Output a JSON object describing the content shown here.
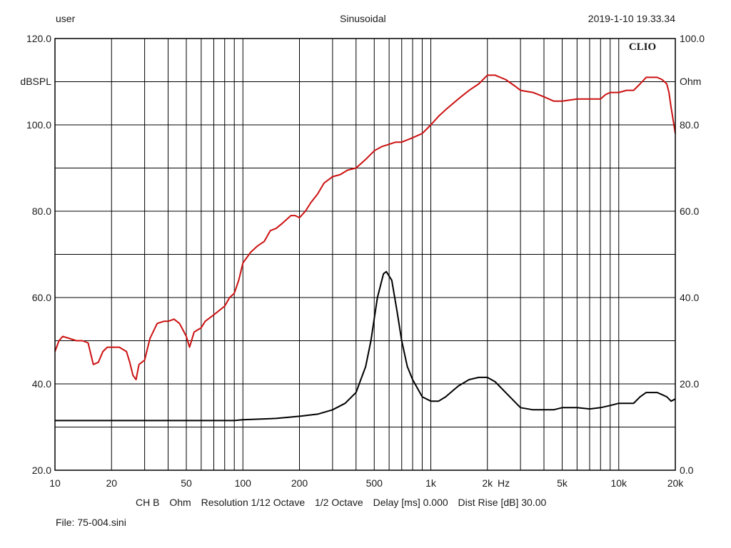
{
  "header": {
    "user": "user",
    "mode": "Sinusoidal",
    "timestamp": "2019-1-10 19.33.34"
  },
  "brand": "CLIO",
  "info_line": {
    "channel": "CH B",
    "units": "Ohm",
    "resolution": "Resolution 1/12 Octave",
    "smoothing": "1/2 Octave",
    "delay": "Delay [ms] 0.000",
    "dist_rise": "Dist Rise [dB] 30.00"
  },
  "file_label": "File: 75-004.sini",
  "chart_data": {
    "type": "line",
    "x_scale": "log",
    "xlim": [
      10,
      20000
    ],
    "x_tick_labels": [
      {
        "value": 10,
        "label": "10"
      },
      {
        "value": 20,
        "label": "20"
      },
      {
        "value": 50,
        "label": "50"
      },
      {
        "value": 100,
        "label": "100"
      },
      {
        "value": 200,
        "label": "200"
      },
      {
        "value": 500,
        "label": "500"
      },
      {
        "value": 1000,
        "label": "1k"
      },
      {
        "value": 2000,
        "label": "2k"
      },
      {
        "value": 5000,
        "label": "5k"
      },
      {
        "value": 10000,
        "label": "10k"
      },
      {
        "value": 20000,
        "label": "20k"
      }
    ],
    "x_unit_label": "Hz",
    "left_axis": {
      "label": "dBSPL",
      "ylim": [
        20,
        120
      ],
      "ticks": [
        "20.0",
        "40.0",
        "60.0",
        "80.0",
        "100.0",
        "120.0"
      ]
    },
    "right_axis": {
      "label": "Ohm",
      "ylim": [
        0,
        100
      ],
      "ticks": [
        "0.0",
        "20.0",
        "40.0",
        "60.0",
        "80.0",
        "100.0"
      ]
    },
    "grid": true,
    "series": [
      {
        "axis": "left",
        "color": "#cc1111",
        "points": [
          [
            10,
            47.5
          ],
          [
            10.5,
            50
          ],
          [
            11,
            51
          ],
          [
            12,
            50.5
          ],
          [
            13,
            50
          ],
          [
            14,
            50
          ],
          [
            15,
            49.5
          ],
          [
            16,
            44.5
          ],
          [
            17,
            45
          ],
          [
            18,
            47.5
          ],
          [
            19,
            48.5
          ],
          [
            20,
            48.5
          ],
          [
            22,
            48.5
          ],
          [
            24,
            47.5
          ],
          [
            25,
            45
          ],
          [
            26,
            42
          ],
          [
            27,
            41
          ],
          [
            28,
            44.5
          ],
          [
            30,
            45.5
          ],
          [
            32,
            50.5
          ],
          [
            35,
            54
          ],
          [
            38,
            54.5
          ],
          [
            40,
            54.5
          ],
          [
            43,
            55
          ],
          [
            46,
            54
          ],
          [
            50,
            51
          ],
          [
            52,
            48.5
          ],
          [
            55,
            52
          ],
          [
            60,
            53
          ],
          [
            63,
            54.5
          ],
          [
            70,
            56
          ],
          [
            80,
            58
          ],
          [
            85,
            60
          ],
          [
            90,
            61
          ],
          [
            95,
            64
          ],
          [
            100,
            68
          ],
          [
            110,
            70.5
          ],
          [
            120,
            72
          ],
          [
            130,
            73
          ],
          [
            140,
            75.5
          ],
          [
            150,
            76
          ],
          [
            160,
            77
          ],
          [
            170,
            78
          ],
          [
            180,
            79
          ],
          [
            190,
            79
          ],
          [
            200,
            78.5
          ],
          [
            215,
            80
          ],
          [
            230,
            82
          ],
          [
            250,
            84
          ],
          [
            270,
            86.5
          ],
          [
            300,
            88
          ],
          [
            330,
            88.5
          ],
          [
            360,
            89.5
          ],
          [
            400,
            90
          ],
          [
            450,
            92
          ],
          [
            500,
            94
          ],
          [
            550,
            95
          ],
          [
            600,
            95.5
          ],
          [
            650,
            96
          ],
          [
            700,
            96
          ],
          [
            800,
            97
          ],
          [
            900,
            98
          ],
          [
            1000,
            100
          ],
          [
            1100,
            102
          ],
          [
            1200,
            103.5
          ],
          [
            1400,
            106
          ],
          [
            1600,
            108
          ],
          [
            1800,
            109.5
          ],
          [
            2000,
            111.5
          ],
          [
            2200,
            111.5
          ],
          [
            2500,
            110.5
          ],
          [
            2800,
            109
          ],
          [
            3000,
            108
          ],
          [
            3500,
            107.5
          ],
          [
            4000,
            106.5
          ],
          [
            4500,
            105.5
          ],
          [
            5000,
            105.5
          ],
          [
            6000,
            106
          ],
          [
            7000,
            106
          ],
          [
            8000,
            106
          ],
          [
            8500,
            107
          ],
          [
            9000,
            107.5
          ],
          [
            9500,
            107.5
          ],
          [
            10000,
            107.5
          ],
          [
            11000,
            108
          ],
          [
            12000,
            108
          ],
          [
            13000,
            109.5
          ],
          [
            14000,
            111
          ],
          [
            15000,
            111
          ],
          [
            16000,
            111
          ],
          [
            17000,
            110.5
          ],
          [
            18000,
            109.5
          ],
          [
            18500,
            107.5
          ],
          [
            19000,
            104
          ],
          [
            19500,
            101
          ],
          [
            20000,
            98
          ]
        ]
      },
      {
        "axis": "right",
        "color": "#000000",
        "points": [
          [
            10,
            11.5
          ],
          [
            50,
            11.5
          ],
          [
            90,
            11.5
          ],
          [
            100,
            11.7
          ],
          [
            150,
            12
          ],
          [
            200,
            12.5
          ],
          [
            250,
            13
          ],
          [
            300,
            14
          ],
          [
            350,
            15.5
          ],
          [
            400,
            18
          ],
          [
            450,
            24
          ],
          [
            480,
            30
          ],
          [
            520,
            40
          ],
          [
            560,
            45.5
          ],
          [
            580,
            46
          ],
          [
            620,
            44
          ],
          [
            660,
            37
          ],
          [
            700,
            30
          ],
          [
            750,
            24
          ],
          [
            800,
            21
          ],
          [
            900,
            17
          ],
          [
            1000,
            16
          ],
          [
            1100,
            16
          ],
          [
            1200,
            17
          ],
          [
            1400,
            19.5
          ],
          [
            1600,
            21
          ],
          [
            1800,
            21.5
          ],
          [
            2000,
            21.5
          ],
          [
            2200,
            20.5
          ],
          [
            2500,
            18
          ],
          [
            3000,
            14.5
          ],
          [
            3500,
            14
          ],
          [
            4000,
            14
          ],
          [
            4500,
            14
          ],
          [
            5000,
            14.5
          ],
          [
            6000,
            14.5
          ],
          [
            7000,
            14.2
          ],
          [
            8000,
            14.5
          ],
          [
            9000,
            15
          ],
          [
            10000,
            15.5
          ],
          [
            11000,
            15.5
          ],
          [
            12000,
            15.5
          ],
          [
            13000,
            17
          ],
          [
            14000,
            18
          ],
          [
            15000,
            18
          ],
          [
            16000,
            18
          ],
          [
            17000,
            17.5
          ],
          [
            18000,
            17
          ],
          [
            19000,
            16
          ],
          [
            20000,
            16.5
          ]
        ]
      }
    ]
  }
}
